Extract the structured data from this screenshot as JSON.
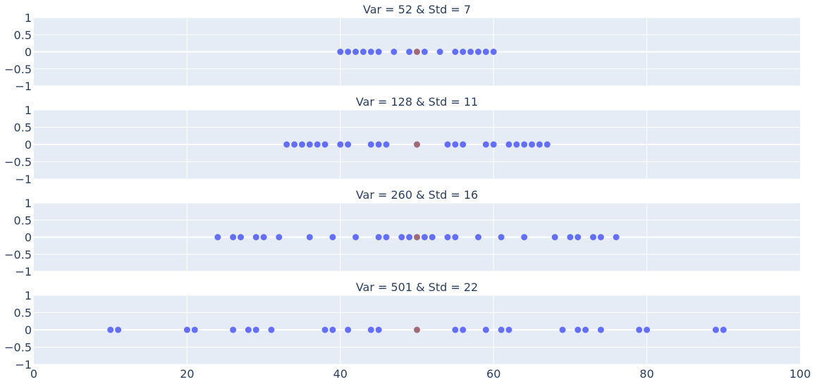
{
  "chart_data": {
    "type": "scatter",
    "subplots": [
      {
        "title": "Var = 52 & Std = 7",
        "series": [
          {
            "x": [
              40,
              41,
              42,
              43,
              44,
              45,
              47,
              49,
              51,
              53,
              55,
              56,
              57,
              58,
              59,
              60
            ],
            "y": [
              0,
              0,
              0,
              0,
              0,
              0,
              0,
              0,
              0,
              0,
              0,
              0,
              0,
              0,
              0,
              0
            ],
            "color": "#636efa"
          },
          {
            "x": [
              50
            ],
            "y": [
              0
            ],
            "color": "#a06a78"
          }
        ]
      },
      {
        "title": "Var = 128 & Std = 11",
        "series": [
          {
            "x": [
              33,
              34,
              35,
              36,
              37,
              38,
              40,
              41,
              44,
              45,
              46,
              54,
              55,
              56,
              59,
              60,
              62,
              63,
              64,
              65,
              66,
              67
            ],
            "y": [
              0,
              0,
              0,
              0,
              0,
              0,
              0,
              0,
              0,
              0,
              0,
              0,
              0,
              0,
              0,
              0,
              0,
              0,
              0,
              0,
              0,
              0
            ],
            "color": "#636efa"
          },
          {
            "x": [
              50
            ],
            "y": [
              0
            ],
            "color": "#a06a78"
          }
        ]
      },
      {
        "title": "Var = 260 & Std = 16",
        "series": [
          {
            "x": [
              24,
              26,
              27,
              29,
              30,
              32,
              36,
              39,
              42,
              45,
              46,
              48,
              49,
              51,
              52,
              54,
              55,
              58,
              61,
              64,
              68,
              70,
              71,
              73,
              74,
              76
            ],
            "y": [
              0,
              0,
              0,
              0,
              0,
              0,
              0,
              0,
              0,
              0,
              0,
              0,
              0,
              0,
              0,
              0,
              0,
              0,
              0,
              0,
              0,
              0,
              0,
              0,
              0,
              0
            ],
            "color": "#636efa"
          },
          {
            "x": [
              50
            ],
            "y": [
              0
            ],
            "color": "#a06a78"
          }
        ]
      },
      {
        "title": "Var = 501 & Std = 22",
        "series": [
          {
            "x": [
              10,
              11,
              20,
              21,
              26,
              28,
              29,
              31,
              38,
              39,
              41,
              44,
              45,
              55,
              56,
              59,
              61,
              62,
              69,
              71,
              72,
              74,
              79,
              80,
              89,
              90
            ],
            "y": [
              0,
              0,
              0,
              0,
              0,
              0,
              0,
              0,
              0,
              0,
              0,
              0,
              0,
              0,
              0,
              0,
              0,
              0,
              0,
              0,
              0,
              0,
              0,
              0,
              0,
              0
            ],
            "color": "#636efa"
          },
          {
            "x": [
              50
            ],
            "y": [
              0
            ],
            "color": "#a06a78"
          }
        ]
      }
    ],
    "xlim": [
      0,
      100
    ],
    "ylim": [
      -1,
      1
    ],
    "x_ticks": [
      0,
      20,
      40,
      60,
      80,
      100
    ],
    "x_tick_labels": [
      "0",
      "20",
      "40",
      "60",
      "80",
      "100"
    ],
    "y_ticks": [
      1,
      0.5,
      0,
      -0.5,
      -1
    ],
    "y_tick_labels": [
      "1",
      "0.5",
      "0",
      "−0.5",
      "−1"
    ],
    "grid": true,
    "legend": false,
    "background_color": "#e5ecf6"
  }
}
